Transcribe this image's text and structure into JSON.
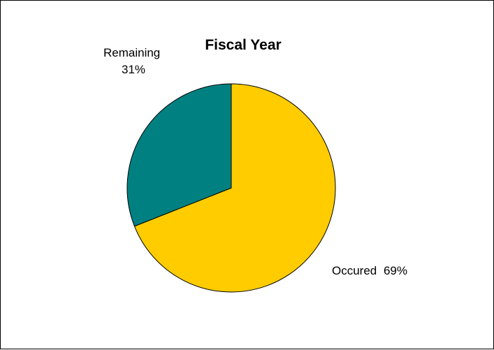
{
  "chart_data": {
    "type": "pie",
    "title": "Fiscal Year",
    "slices": [
      {
        "label": "Occured",
        "value": 69,
        "value_text": "69%",
        "color": "#FFCC00"
      },
      {
        "label": "Remaining",
        "value": 31,
        "value_text": "31%",
        "color": "#008080"
      }
    ],
    "start_angle_deg": 0,
    "direction": "clockwise",
    "slice_border_color": "#000000"
  }
}
